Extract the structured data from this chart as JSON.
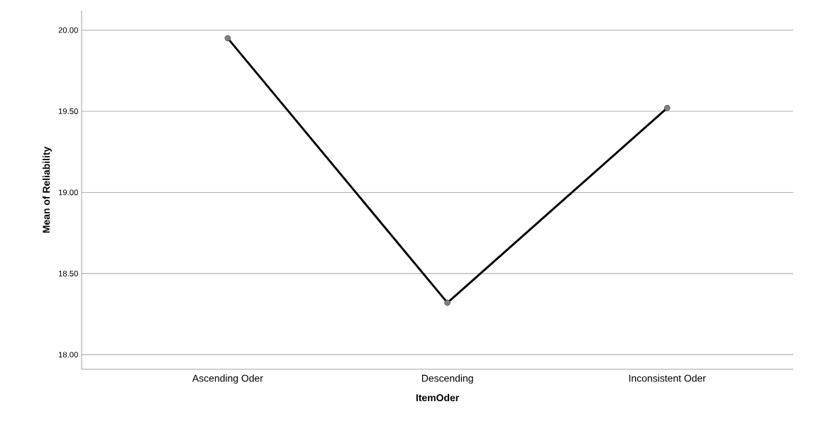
{
  "chart_data": {
    "type": "line",
    "xlabel": "ItemOder",
    "ylabel": "Mean of Reliability",
    "categories": [
      "Ascending Oder",
      "Descending",
      "Inconsistent Oder"
    ],
    "series": [
      {
        "color": "#000000",
        "values": [
          19.95,
          18.32,
          19.52
        ]
      }
    ],
    "ylim": [
      17.91,
      20.12
    ],
    "yticks": [
      {
        "value": 18,
        "label": "18.00"
      },
      {
        "value": 18.5,
        "label": "18.50"
      },
      {
        "value": 19,
        "label": "19.00"
      },
      {
        "value": 19.5,
        "label": "19.50"
      },
      {
        "value": 20,
        "label": "20.00"
      }
    ],
    "grid": "y",
    "marker": "circle",
    "line_style": "solid"
  }
}
